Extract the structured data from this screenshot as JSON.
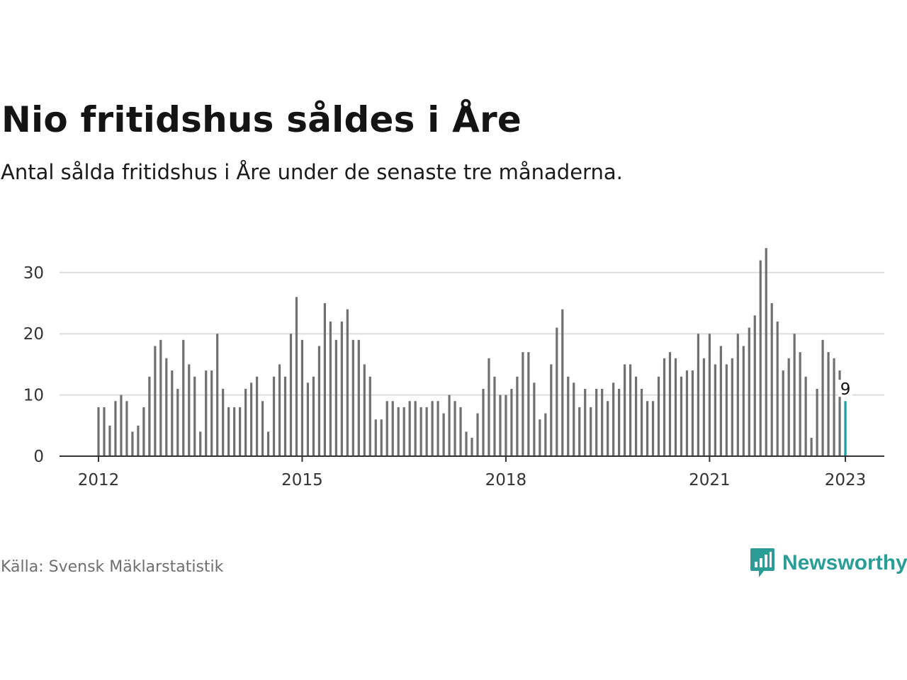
{
  "title": "Nio fritidshus såldes i Åre",
  "subtitle": "Antal sålda fritidshus i Åre under de senaste tre månaderna.",
  "source": "Källa: Svensk Mäklarstatistik",
  "brand": {
    "name": "Newsworthy",
    "color": "#2a9d96",
    "icon": "bar-chart-speech-bubble-icon"
  },
  "colors": {
    "bar": "#707070",
    "highlight": "#1a9e99",
    "grid": "#dddddd",
    "axis": "#333333"
  },
  "chart_data": {
    "type": "bar",
    "title": "Nio fritidshus såldes i Åre",
    "subtitle": "Antal sålda fritidshus i Åre under de senaste tre månaderna.",
    "xlabel": "",
    "ylabel": "",
    "x_start": "2012-01",
    "interval": "monthly",
    "x_ticks": [
      "2012",
      "2015",
      "2018",
      "2021",
      "2023"
    ],
    "y_ticks": [
      0,
      10,
      20,
      30
    ],
    "ylim": [
      0,
      35
    ],
    "grid": true,
    "highlight_last": true,
    "last_value_label": "9",
    "values": [
      8,
      8,
      5,
      9,
      10,
      9,
      4,
      5,
      8,
      13,
      18,
      19,
      16,
      14,
      11,
      19,
      15,
      13,
      4,
      14,
      14,
      20,
      11,
      8,
      8,
      8,
      11,
      12,
      13,
      9,
      4,
      13,
      15,
      13,
      20,
      26,
      19,
      12,
      13,
      18,
      25,
      22,
      19,
      22,
      24,
      19,
      19,
      15,
      13,
      6,
      6,
      9,
      9,
      8,
      8,
      9,
      9,
      8,
      8,
      9,
      9,
      7,
      10,
      9,
      8,
      4,
      3,
      7,
      11,
      16,
      13,
      10,
      10,
      11,
      13,
      17,
      17,
      12,
      6,
      7,
      15,
      21,
      24,
      13,
      12,
      8,
      11,
      8,
      11,
      11,
      9,
      12,
      11,
      15,
      15,
      13,
      11,
      9,
      9,
      13,
      16,
      17,
      16,
      13,
      14,
      14,
      20,
      16,
      20,
      15,
      18,
      15,
      16,
      20,
      18,
      21,
      23,
      32,
      34,
      25,
      22,
      14,
      16,
      20,
      17,
      13,
      3,
      11,
      19,
      17,
      16,
      14,
      9
    ]
  }
}
